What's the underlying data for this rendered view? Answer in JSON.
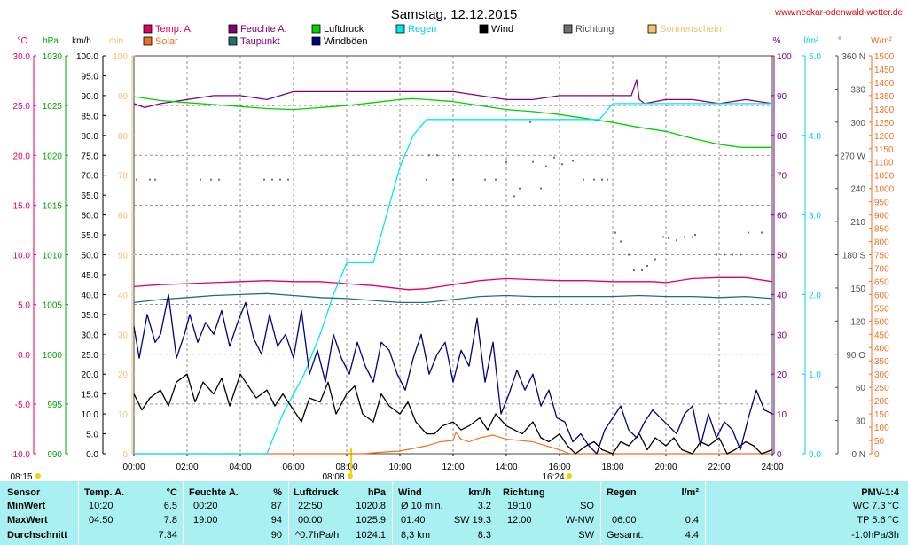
{
  "title": "Samstag, 12.12.2015",
  "site": "www.neckar-odenwald-wetter.de",
  "colors": {
    "temp": "#e0006a",
    "feuchte": "#800080",
    "luftdruck": "#00d000",
    "regen": "#00e8f0",
    "wind": "#000000",
    "richtung": "#707070",
    "sonnenschein": "#f5c070",
    "solar": "#f07020",
    "taupunkt": "#207070",
    "windboeen": "#000080",
    "grid": "#555555",
    "stats_bg": "#a8f0f2"
  },
  "legend": [
    {
      "label": "Temp. A.",
      "color": "#e0006a"
    },
    {
      "label": "Feuchte A.",
      "color": "#800080"
    },
    {
      "label": "Luftdruck",
      "color": "#00d000"
    },
    {
      "label": "Regen",
      "color": "#00e8f0"
    },
    {
      "label": "Wind",
      "color": "#000000"
    },
    {
      "label": "Richtung",
      "color": "#707070"
    },
    {
      "label": "Sonnenschein",
      "color": "#f5c070"
    },
    {
      "label": "Solar",
      "color": "#f07020"
    },
    {
      "label": "Taupunkt",
      "color": "#207070"
    },
    {
      "label": "Windböen",
      "color": "#000080"
    }
  ],
  "axes": {
    "temp": {
      "unit": "°C",
      "ticks": [
        "30.0",
        "25.0",
        "20.0",
        "15.0",
        "10.0",
        "5.0",
        "0.0",
        "-5.0",
        "-10.0"
      ],
      "color": "#e0006a"
    },
    "hpa": {
      "unit": "hPa",
      "ticks": [
        "1030",
        "1025",
        "1020",
        "1015",
        "1010",
        "1005",
        "1000",
        "995",
        "990"
      ],
      "color": "#00a000"
    },
    "kmh": {
      "unit": "km/h",
      "ticks": [
        "100.0",
        "95.0",
        "90.0",
        "85.0",
        "80.0",
        "75.0",
        "70.0",
        "65.0",
        "60.0",
        "55.0",
        "50.0",
        "45.0",
        "40.0",
        "35.0",
        "30.0",
        "25.0",
        "20.0",
        "15.0",
        "10.0",
        "5.0",
        "0.0"
      ],
      "color": "#000000"
    },
    "min": {
      "unit": "min",
      "ticks": [
        "100",
        "90",
        "80",
        "70",
        "60",
        "50",
        "40",
        "30",
        "20",
        "10",
        "0"
      ],
      "color": "#f5c070"
    },
    "pct": {
      "unit": "%",
      "ticks": [
        "100",
        "90",
        "80",
        "70",
        "60",
        "50",
        "40",
        "30",
        "20",
        "10",
        "0"
      ],
      "color": "#800080"
    },
    "rain": {
      "unit": "l/m²",
      "ticks": [
        "5.0",
        "4.0",
        "3.0",
        "2.0",
        "1.0",
        "0.0"
      ],
      "color": "#00d0e0"
    },
    "dir": {
      "unit": "°",
      "ticks": [
        "360 N",
        "330",
        "300",
        "270 W",
        "240",
        "210",
        "180 S",
        "150",
        "120",
        "90 O",
        "60",
        "30",
        "0 N"
      ],
      "color": "#505050"
    },
    "solar": {
      "unit": "W/m²",
      "ticks": [
        "1500",
        "1450",
        "1400",
        "1350",
        "1300",
        "1250",
        "1200",
        "1150",
        "1100",
        "1050",
        "1000",
        "950",
        "900",
        "850",
        "800",
        "750",
        "700",
        "650",
        "600",
        "550",
        "500",
        "450",
        "400",
        "350",
        "300",
        "250",
        "200",
        "150",
        "100",
        "50",
        "0"
      ],
      "color": "#f07020"
    },
    "x": {
      "ticks": [
        "00:00",
        "02:00",
        "04:00",
        "06:00",
        "08:00",
        "10:00",
        "12:00",
        "14:00",
        "16:00",
        "18:00",
        "20:00",
        "22:00",
        "24:00"
      ]
    }
  },
  "sun_marks": [
    "08:15",
    "08:08",
    "16:24"
  ],
  "chart_data": {
    "type": "line",
    "x_unit": "hours",
    "x_range": [
      0,
      24
    ],
    "series": [
      {
        "name": "Temp. A.",
        "axis": "temp",
        "color": "#e0006a",
        "x": [
          0,
          1,
          2,
          3,
          4,
          5,
          6,
          7,
          8,
          9,
          10,
          10.33,
          11,
          12,
          13,
          14,
          15,
          16,
          17,
          18,
          19,
          19.5,
          20,
          21,
          22,
          23,
          24
        ],
        "y": [
          6.8,
          7.0,
          7.1,
          7.2,
          7.3,
          7.4,
          7.3,
          7.3,
          7.1,
          6.9,
          6.6,
          6.5,
          6.6,
          7.0,
          7.4,
          7.6,
          7.5,
          7.4,
          7.4,
          7.3,
          7.3,
          7.3,
          7.2,
          7.6,
          7.7,
          7.7,
          7.3
        ]
      },
      {
        "name": "Feuchte A.",
        "axis": "pct",
        "color": "#800080",
        "x": [
          0,
          0.4,
          1,
          2,
          3,
          4,
          5,
          6,
          7,
          8,
          9,
          10,
          11,
          12,
          13,
          14,
          15,
          16,
          17,
          18,
          18.7,
          18.9,
          19.0,
          19.2,
          20,
          21,
          22,
          23,
          24
        ],
        "y": [
          88,
          87,
          88,
          89,
          90,
          90,
          89,
          91,
          91,
          91,
          91,
          91,
          91,
          91,
          90,
          89,
          89,
          90,
          90,
          90,
          90,
          94,
          89,
          88,
          89,
          89,
          88,
          89,
          88
        ]
      },
      {
        "name": "Luftdruck",
        "axis": "hpa",
        "color": "#00d000",
        "x": [
          0,
          1,
          2,
          3,
          4,
          5,
          6,
          7,
          8,
          9,
          10,
          10.5,
          11,
          12,
          13,
          14,
          15,
          16,
          17,
          18,
          19,
          20,
          21,
          22,
          22.83,
          24
        ],
        "y": [
          1025.9,
          1025.5,
          1025.3,
          1025.1,
          1024.9,
          1024.7,
          1024.6,
          1024.8,
          1025.0,
          1025.3,
          1025.6,
          1025.7,
          1025.6,
          1025.4,
          1025.0,
          1024.6,
          1024.4,
          1024.1,
          1023.7,
          1023.3,
          1022.8,
          1022.4,
          1021.7,
          1021.1,
          1020.8,
          1020.8
        ]
      },
      {
        "name": "Regen",
        "axis": "rain",
        "color": "#00e8f0",
        "x": [
          0,
          5.0,
          5.6,
          6.4,
          7.0,
          7.5,
          8.0,
          9.0,
          9.5,
          10.0,
          10.5,
          11.0,
          17.5,
          18.0,
          24
        ],
        "y": [
          0,
          0,
          0.5,
          1.0,
          1.5,
          2.0,
          2.4,
          2.4,
          3.0,
          3.6,
          4.0,
          4.2,
          4.2,
          4.4,
          4.4
        ]
      },
      {
        "name": "Taupunkt",
        "axis": "temp",
        "color": "#207070",
        "x": [
          0,
          1,
          2,
          3,
          4,
          5,
          6,
          7,
          8,
          9,
          10,
          11,
          12,
          13,
          14,
          15,
          16,
          17,
          18,
          19,
          20,
          21,
          22,
          23,
          24
        ],
        "y": [
          5.2,
          5.5,
          5.7,
          5.9,
          6.0,
          6.1,
          5.9,
          5.7,
          5.6,
          5.4,
          5.2,
          5.2,
          5.5,
          5.8,
          5.9,
          5.8,
          5.8,
          5.8,
          5.8,
          5.9,
          5.8,
          5.8,
          5.7,
          5.8,
          5.6
        ]
      },
      {
        "name": "Wind",
        "axis": "kmh",
        "color": "#000000",
        "x": [
          0,
          0.3,
          0.6,
          1,
          1.3,
          1.6,
          2,
          2.3,
          2.6,
          3,
          3.3,
          3.6,
          4,
          4.3,
          4.6,
          5,
          5.3,
          5.6,
          6,
          6.3,
          6.6,
          7,
          7.3,
          7.6,
          8,
          8.3,
          8.6,
          9,
          9.3,
          9.6,
          10,
          10.3,
          10.6,
          11,
          11.3,
          11.6,
          12,
          12.3,
          12.6,
          13,
          13.3,
          13.6,
          14,
          14.3,
          14.6,
          15,
          15.3,
          15.6,
          16,
          16.3,
          16.6,
          17,
          17.3,
          17.6,
          18,
          18.3,
          18.6,
          19,
          19.3,
          19.6,
          20,
          20.3,
          20.6,
          21,
          21.3,
          21.6,
          22,
          22.3,
          22.6,
          23,
          23.3,
          23.6,
          24
        ],
        "y": [
          15,
          11,
          14,
          16,
          12,
          18,
          20,
          13,
          18,
          15,
          19,
          12,
          20,
          17,
          14,
          16,
          12,
          15,
          11,
          8,
          14,
          13,
          18,
          10,
          15,
          17,
          10,
          8,
          15,
          12,
          10,
          13,
          8,
          5,
          5,
          7,
          8,
          6,
          7,
          9,
          6,
          10,
          7,
          6,
          5,
          8,
          4,
          3,
          5,
          2,
          0,
          2,
          3,
          1,
          0,
          3,
          2,
          5,
          1,
          4,
          2,
          4,
          1,
          0,
          3,
          2,
          4,
          0,
          1,
          3,
          2,
          0,
          1
        ]
      },
      {
        "name": "Windböen",
        "axis": "kmh",
        "color": "#000080",
        "x": [
          0,
          0.2,
          0.5,
          0.8,
          1,
          1.3,
          1.6,
          1.9,
          2.1,
          2.4,
          2.7,
          3,
          3.3,
          3.6,
          3.9,
          4.2,
          4.5,
          4.8,
          5.1,
          5.4,
          5.7,
          6,
          6.3,
          6.6,
          6.9,
          7.2,
          7.5,
          7.8,
          8.1,
          8.4,
          8.7,
          9,
          9.3,
          9.6,
          9.9,
          10.2,
          10.5,
          10.8,
          11.1,
          11.4,
          11.7,
          12,
          12.3,
          12.6,
          12.9,
          13.2,
          13.5,
          13.8,
          14.1,
          14.4,
          14.7,
          15,
          15.3,
          15.6,
          15.9,
          16.2,
          16.5,
          16.8,
          17.1,
          17.4,
          17.7,
          18,
          18.3,
          18.6,
          18.9,
          19.2,
          19.5,
          19.8,
          20.1,
          20.4,
          20.7,
          21,
          21.3,
          21.6,
          21.9,
          22.2,
          22.5,
          22.8,
          23.1,
          23.4,
          23.7,
          24
        ],
        "y": [
          32,
          24,
          35,
          28,
          30,
          40,
          24,
          30,
          35,
          28,
          33,
          30,
          36,
          27,
          33,
          38,
          29,
          25,
          35,
          27,
          30,
          24,
          36,
          20,
          26,
          18,
          30,
          24,
          20,
          28,
          22,
          18,
          28,
          26,
          20,
          16,
          24,
          30,
          20,
          25,
          28,
          18,
          26,
          22,
          34,
          18,
          28,
          10,
          15,
          21,
          16,
          20,
          12,
          16,
          9,
          8,
          3,
          5,
          2,
          0,
          6,
          9,
          12,
          6,
          4,
          8,
          11,
          9,
          7,
          5,
          10,
          12,
          2,
          10,
          4,
          8,
          6,
          1,
          9,
          16,
          11,
          10
        ]
      }
    ],
    "richtung_dots": {
      "name": "Richtung",
      "axis": "dir",
      "color": "#707070",
      "x": [
        0.1,
        0.6,
        0.8,
        2.5,
        2.9,
        3.2,
        4.9,
        5.2,
        5.5,
        5.8,
        11,
        11.1,
        11.4,
        12,
        12.2,
        13.2,
        13.6,
        14.0,
        14.3,
        14.5,
        14.9,
        15.0,
        15.3,
        15.5,
        15.8,
        16.1,
        16.5,
        16.9,
        17.3,
        17.6,
        17.8,
        18.1,
        18.3,
        18.6,
        18.8,
        19.1,
        19.3,
        19.6,
        19.9,
        20.1,
        20.4,
        20.7,
        21.0,
        21.1,
        21.9,
        22.2,
        22.5,
        22.8,
        23.1,
        23.6
      ],
      "y": [
        248,
        248,
        248,
        248,
        248,
        248,
        248,
        248,
        248,
        248,
        248,
        270,
        270,
        248,
        270,
        248,
        248,
        264,
        233,
        240,
        300,
        264,
        240,
        260,
        268,
        262,
        265,
        248,
        248,
        248,
        248,
        200,
        192,
        180,
        166,
        166,
        170,
        176,
        196,
        195,
        193,
        196,
        196,
        198,
        180,
        180,
        180,
        180,
        200,
        200
      ]
    },
    "solar": {
      "name": "Solar",
      "axis": "solar",
      "color": "#f07020",
      "x": [
        0,
        8.6,
        9.2,
        10.0,
        10.5,
        11.0,
        11.5,
        12.0,
        12.1,
        12.3,
        12.6,
        13.0,
        13.5,
        14.0,
        14.5,
        15.0,
        15.5,
        16.0,
        16.4,
        24
      ],
      "y": [
        0,
        0,
        5,
        10,
        20,
        30,
        45,
        50,
        80,
        55,
        45,
        60,
        70,
        55,
        50,
        45,
        30,
        15,
        0,
        0
      ]
    }
  },
  "stats": {
    "headers": {
      "sensor": "Sensor",
      "temp": "Temp. A.",
      "temp_unit": "°C",
      "feuchte": "Feuchte A.",
      "feuchte_unit": "%",
      "luftdruck": "Luftdruck",
      "luftdruck_unit": "hPa",
      "wind": "Wind",
      "wind_unit": "km/h",
      "richtung": "Richtung",
      "regen": "Regen",
      "regen_unit": "l/m²",
      "pmv": "PMV-1:4"
    },
    "rows": {
      "min": {
        "label": "MinWert",
        "temp_t": "10:20",
        "temp_v": "6.5",
        "feuchte_t": "00:20",
        "feuchte_v": "87",
        "druck_t": "22:50",
        "druck_v": "1020.8",
        "wind_t": "Ø 10 min.",
        "wind_v": "3.2",
        "richt_t": "19:10",
        "richt_v": "SO",
        "regen_t": "",
        "regen_v": "",
        "pmv": "WC 7.3 °C"
      },
      "max": {
        "label": "MaxWert",
        "temp_t": "04:50",
        "temp_v": "7.8",
        "feuchte_t": "19:00",
        "feuchte_v": "94",
        "druck_t": "00:00",
        "druck_v": "1025.9",
        "wind_t": "01:40",
        "wind_v": "SW 19.3",
        "richt_t": "12:00",
        "richt_v": "W-NW",
        "regen_t": "06:00",
        "regen_v": "0.4",
        "pmv": "TP 5.6 °C"
      },
      "avg": {
        "label": "Durchschnitt",
        "temp_t": "",
        "temp_v": "7.34",
        "feuchte_t": "",
        "feuchte_v": "90",
        "druck_t": "^0.7hPa/h",
        "druck_v": "1024.1",
        "wind_t": "8,3 km",
        "wind_v": "8.3",
        "richt_t": "",
        "richt_v": "SW",
        "regen_t": "Gesamt:",
        "regen_v": "4.4",
        "pmv": "-1.0hPa/3h"
      }
    }
  }
}
